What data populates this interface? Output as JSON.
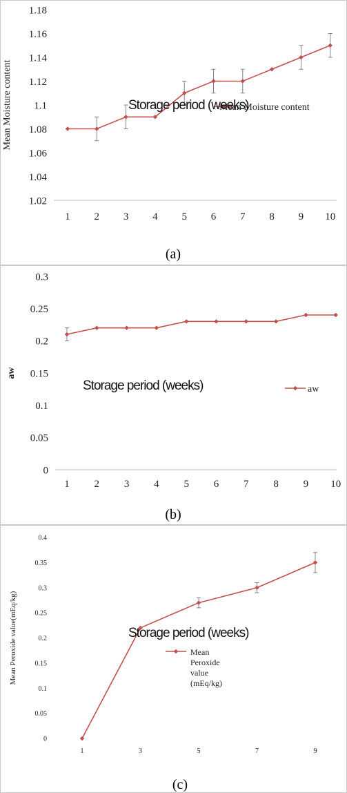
{
  "chart_data": [
    {
      "type": "line",
      "panel_label": "(a)",
      "ylabel": "Mean Moisture content",
      "xlabel": "Storage period (weeks)",
      "categories": [
        "1",
        "2",
        "3",
        "4",
        "5",
        "6",
        "7",
        "8",
        "9",
        "10"
      ],
      "series": [
        {
          "name": "Mean Moisture content",
          "values": [
            1.08,
            1.08,
            1.09,
            1.09,
            1.11,
            1.12,
            1.12,
            1.13,
            1.14,
            1.15
          ],
          "errors": [
            0,
            0.01,
            0.01,
            0,
            0.01,
            0.01,
            0.01,
            0,
            0.01,
            0.01
          ]
        }
      ],
      "ylim": [
        1.02,
        1.18
      ],
      "yticks": [
        "1.02",
        "1.04",
        "1.06",
        "1.08",
        "1.1",
        "1.12",
        "1.14",
        "1.16",
        "1.18"
      ],
      "grid": false,
      "legend_position": "right",
      "line_color": "#c0504d"
    },
    {
      "type": "line",
      "panel_label": "(b)",
      "ylabel": "aw",
      "xlabel": "Storage period (weeks)",
      "categories": [
        "1",
        "2",
        "3",
        "4",
        "5",
        "6",
        "7",
        "8",
        "9",
        "10"
      ],
      "series": [
        {
          "name": "aw",
          "values": [
            0.21,
            0.22,
            0.22,
            0.22,
            0.23,
            0.23,
            0.23,
            0.23,
            0.24,
            0.24
          ],
          "errors": [
            0.01,
            0,
            0,
            0,
            0,
            0,
            0,
            0,
            0,
            0
          ]
        }
      ],
      "ylim": [
        0,
        0.3
      ],
      "yticks": [
        "0",
        "0.05",
        "0.1",
        "0.15",
        "0.2",
        "0.25",
        "0.3"
      ],
      "grid": false,
      "legend_position": "right",
      "line_color": "#c0504d"
    },
    {
      "type": "line",
      "panel_label": "(c)",
      "ylabel": "Mean Peroxide value(mEq/kg)",
      "xlabel": "Storage period (weeks)",
      "categories": [
        "1",
        "3",
        "5",
        "7",
        "9"
      ],
      "series": [
        {
          "name": "Mean Peroxide value (mEq/kg)",
          "legend_lines": [
            "Mean",
            "Peroxide",
            "value",
            "(mEq/kg)"
          ],
          "values": [
            0,
            0.22,
            0.27,
            0.3,
            0.35
          ],
          "errors": [
            0,
            0,
            0.01,
            0.01,
            0.02
          ]
        }
      ],
      "ylim": [
        0,
        0.4
      ],
      "yticks": [
        "0",
        "0.05",
        "0.1",
        "0.15",
        "0.2",
        "0.25",
        "0.3",
        "0.35",
        "0.4"
      ],
      "grid": false,
      "legend_position": "right",
      "line_color": "#c0504d"
    }
  ]
}
